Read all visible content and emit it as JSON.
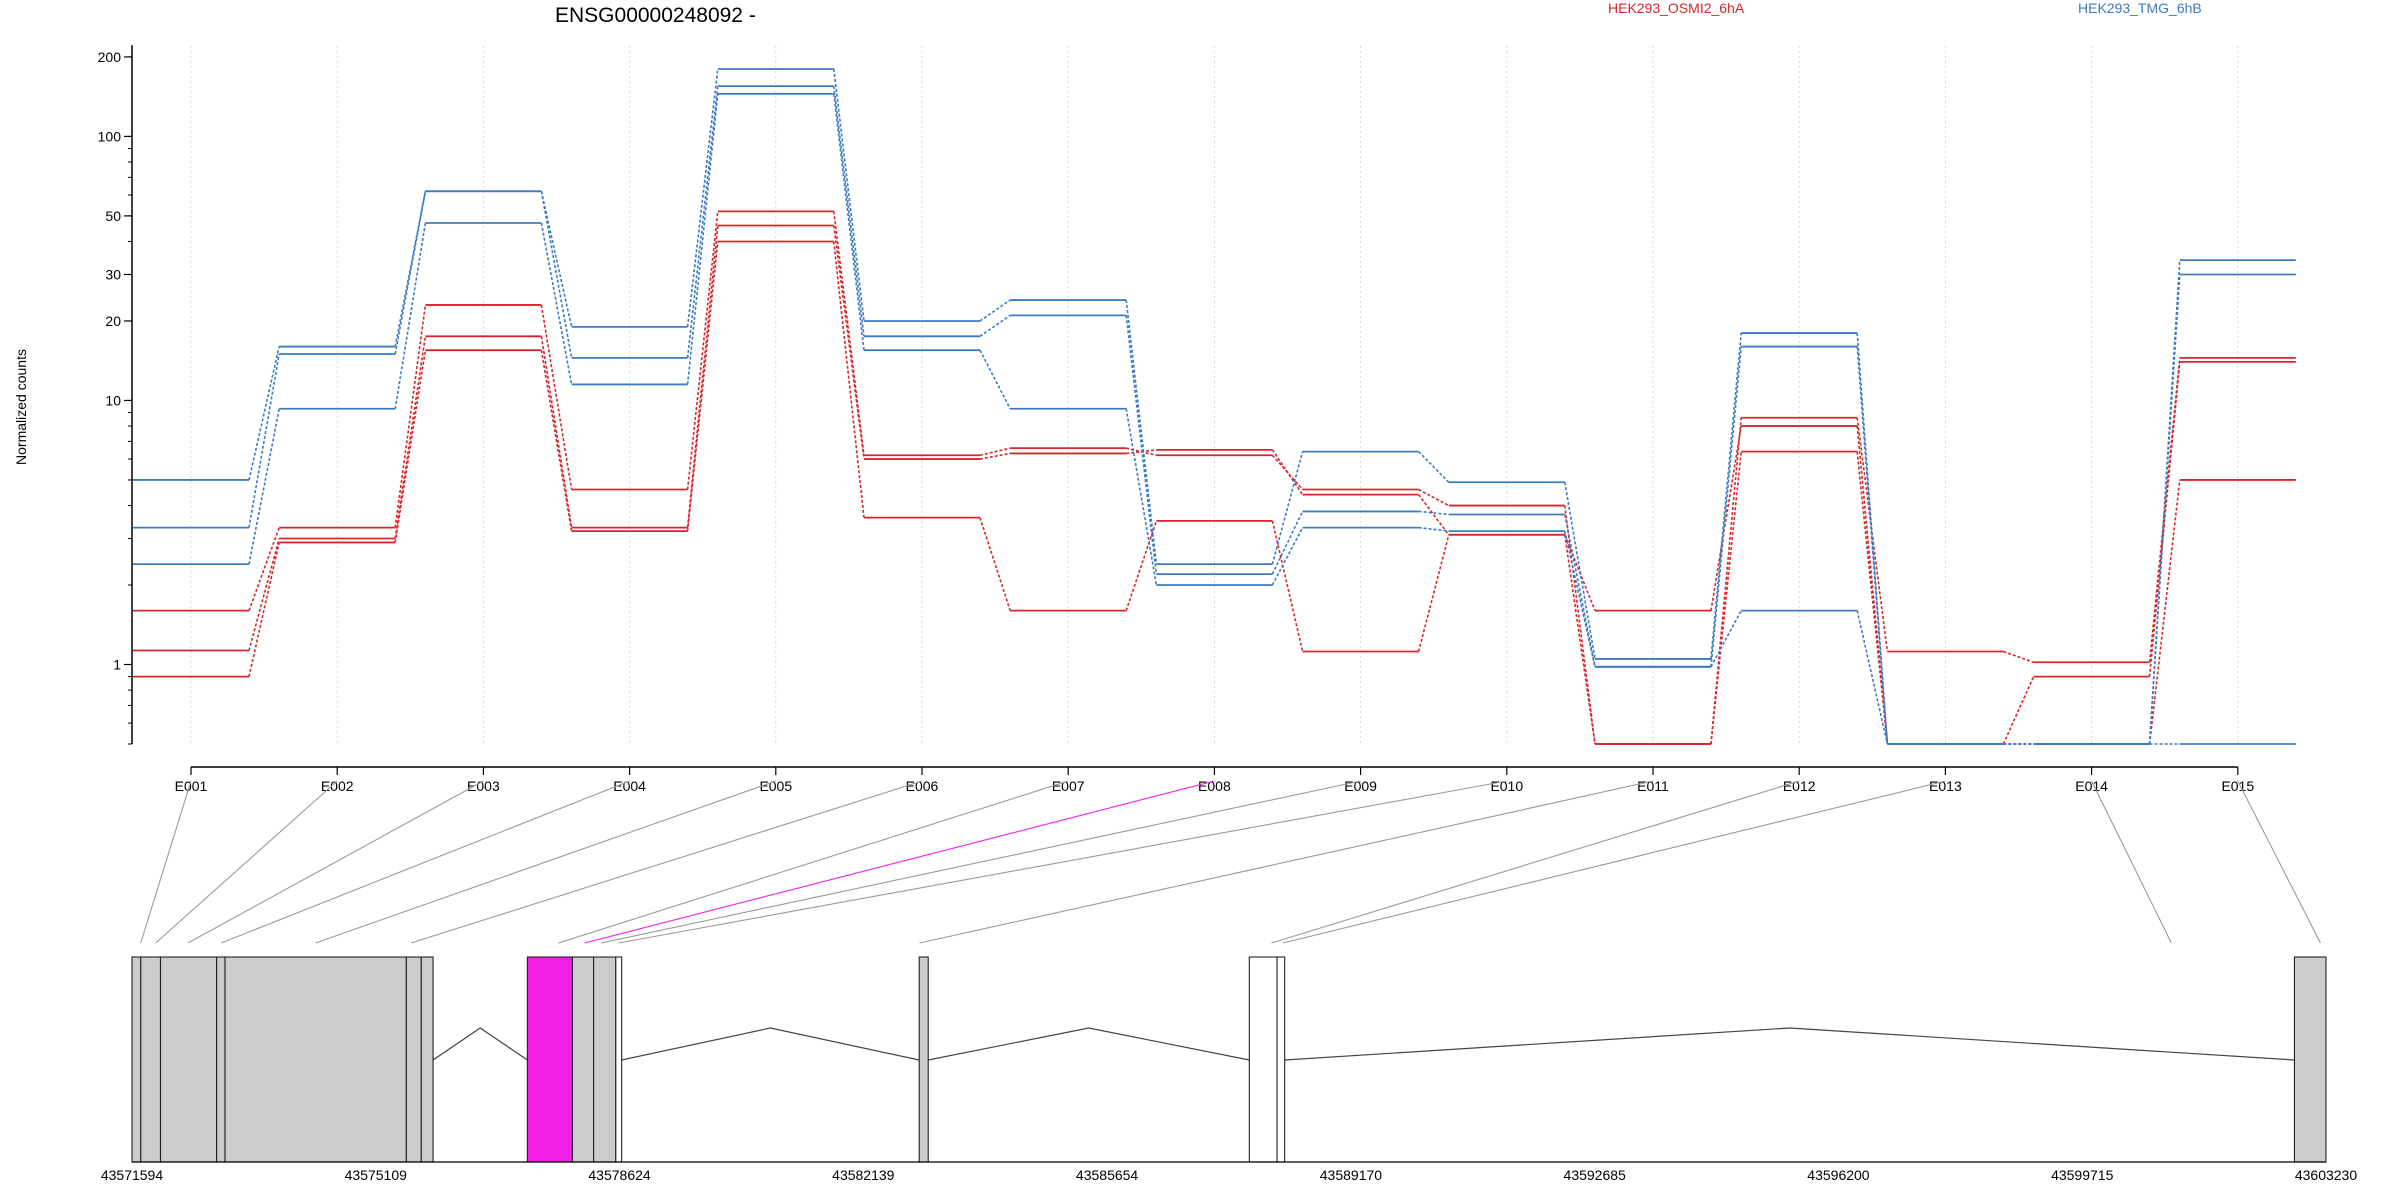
{
  "chart_data": {
    "type": "line",
    "title": "ENSG00000248092 -",
    "ylabel": "Normalized counts",
    "y_scale": "log",
    "ylim": [
      0.5,
      220
    ],
    "y_ticks": [
      1,
      10,
      20,
      30,
      50,
      100,
      200
    ],
    "categories": [
      "E001",
      "E002",
      "E003",
      "E004",
      "E005",
      "E006",
      "E007",
      "E008",
      "E009",
      "E010",
      "E011",
      "E012",
      "E013",
      "E014",
      "E015"
    ],
    "highlight_exon": "E008",
    "colors": {
      "HEK293_OSMI2_6hA": "#d7262b",
      "HEK293_TMG_6hB": "#3b7bbf",
      "highlight": "#f21ee8"
    },
    "legend": [
      "HEK293_OSMI2_6hA",
      "HEK293_TMG_6hB"
    ],
    "series": [
      {
        "name": "HEK293_OSMI2_6hA",
        "values": [
          1.6,
          3.3,
          23,
          4.6,
          52,
          6.2,
          6.6,
          6.2,
          4.6,
          4.0,
          0.5,
          8.6,
          1.12,
          1.02,
          14.5
        ]
      },
      {
        "name": "HEK293_OSMI2_6hA",
        "values": [
          1.13,
          3.0,
          17.5,
          3.3,
          46,
          6.0,
          6.3,
          6.5,
          4.4,
          3.1,
          1.6,
          8.0,
          0.5,
          0.9,
          14.0
        ]
      },
      {
        "name": "HEK293_OSMI2_6hA",
        "values": [
          0.9,
          2.9,
          15.5,
          3.2,
          40,
          3.6,
          1.6,
          3.5,
          1.12,
          3.1,
          0.5,
          6.4,
          0.5,
          0.5,
          5.0
        ]
      },
      {
        "name": "HEK293_TMG_6hB",
        "values": [
          5.0,
          16,
          62,
          19,
          180,
          20,
          24,
          2.4,
          6.4,
          4.9,
          1.05,
          18,
          0.5,
          0.5,
          34
        ]
      },
      {
        "name": "HEK293_TMG_6hB",
        "values": [
          3.3,
          15,
          62,
          14.5,
          155,
          17.5,
          21,
          2.2,
          3.8,
          3.7,
          0.98,
          16,
          0.5,
          0.5,
          30
        ]
      },
      {
        "name": "HEK293_TMG_6hB",
        "values": [
          2.4,
          9.3,
          47,
          11.5,
          145,
          15.5,
          9.3,
          2.0,
          3.3,
          3.2,
          0.98,
          1.6,
          0.5,
          0.5,
          0.5
        ]
      }
    ],
    "gene_model": {
      "coordinate_labels": [
        "43571594",
        "43575109",
        "43578624",
        "43582139",
        "43585654",
        "43589170",
        "43592685",
        "43596200",
        "43599715",
        "43603230"
      ],
      "exon_blocks": [
        {
          "start": 43571594,
          "end": 43571720,
          "fill": "#cccccc"
        },
        {
          "start": 43571720,
          "end": 43572005,
          "fill": "#cccccc"
        },
        {
          "start": 43572005,
          "end": 43572815,
          "fill": "#cccccc"
        },
        {
          "start": 43572815,
          "end": 43572935,
          "fill": "#cccccc"
        },
        {
          "start": 43572935,
          "end": 43575550,
          "fill": "#cccccc"
        },
        {
          "start": 43575550,
          "end": 43575765,
          "fill": "#cccccc"
        },
        {
          "start": 43575765,
          "end": 43575935,
          "fill": "#cccccc"
        },
        {
          "start": 43577295,
          "end": 43577945,
          "fill": "#f21ee8"
        },
        {
          "start": 43577945,
          "end": 43578250,
          "fill": "#cccccc"
        },
        {
          "start": 43578250,
          "end": 43578570,
          "fill": "#cccccc"
        },
        {
          "start": 43578570,
          "end": 43578655,
          "fill": "#ffffff"
        },
        {
          "start": 43582945,
          "end": 43583075,
          "fill": "#cccccc"
        },
        {
          "start": 43587705,
          "end": 43588105,
          "fill": "#ffffff"
        },
        {
          "start": 43588105,
          "end": 43588215,
          "fill": "#ffffff"
        },
        {
          "start": 43602775,
          "end": 43603230,
          "fill": "#cccccc"
        }
      ],
      "introns": [
        [
          43575935,
          43577295
        ],
        [
          43578655,
          43582945
        ],
        [
          43583075,
          43587705
        ],
        [
          43588215,
          43602775
        ]
      ],
      "exon_map": [
        43571720,
        43571935,
        43572400,
        43572880,
        43574240,
        43575620,
        43577745,
        43578120,
        43578360,
        43578610,
        43582950,
        43588025,
        43588190,
        43601000,
        43603150
      ]
    }
  }
}
